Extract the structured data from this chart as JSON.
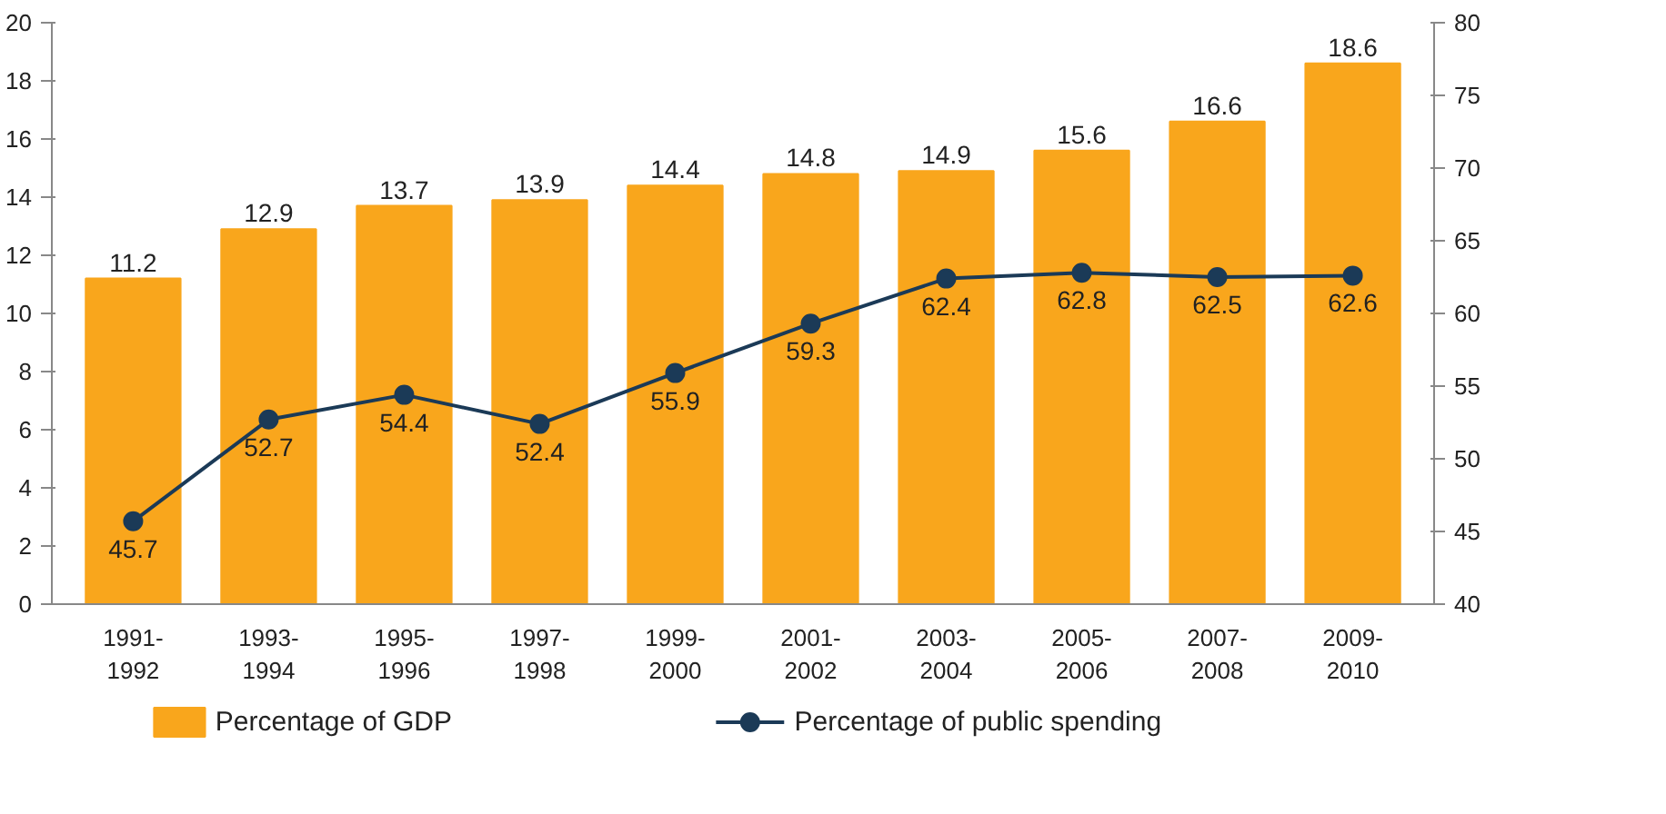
{
  "chart_data": {
    "type": "bar",
    "categories": [
      "1991-\n1992",
      "1993-\n1994",
      "1995-\n1996",
      "1997-\n1998",
      "1999-\n2000",
      "2001-\n2002",
      "2003-\n2004",
      "2005-\n2006",
      "2007-\n2008",
      "2009-\n2010"
    ],
    "series": [
      {
        "name": "Percentage of GDP",
        "color": "#f9a61c",
        "values": [
          11.2,
          12.9,
          13.7,
          13.9,
          14.4,
          14.8,
          14.9,
          15.6,
          16.6,
          18.6
        ]
      },
      {
        "name": "Percentage of public spending",
        "type": "line",
        "axis": "y2",
        "color": "#1b3a57",
        "marker": "circle",
        "line_style": "solid",
        "values": [
          45.7,
          52.7,
          54.4,
          52.4,
          55.9,
          59.3,
          62.4,
          62.8,
          62.5,
          62.6
        ]
      }
    ],
    "ylim": [
      0,
      20
    ],
    "yticks": [
      0,
      2,
      4,
      6,
      8,
      10,
      12,
      14,
      16,
      18,
      20
    ],
    "y2lim": [
      40,
      80
    ],
    "y2ticks": [
      40,
      45,
      50,
      55,
      60,
      65,
      70,
      75,
      80
    ],
    "data_labels": true,
    "grid": false,
    "legend": "bottom"
  }
}
